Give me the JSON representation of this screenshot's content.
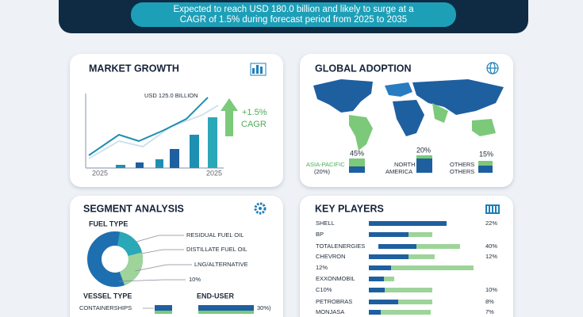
{
  "header": {
    "lines": [
      "Expected to reach USD 180.0 billion and likely to surge at a",
      "CAGR of 1.5% during forecast period from 2025 to 2035"
    ]
  },
  "market_growth": {
    "title": "MARKET GROWTH",
    "annotation": "USD 125.0 BILLION",
    "cagr": [
      "+1.5%",
      "CAGR"
    ],
    "axis_labels": [
      "2025",
      "2025"
    ]
  },
  "global_adoption": {
    "title": "GLOBAL ADOPTION",
    "regions": [
      {
        "value": "45%",
        "label": [
          "ASIA-PACIFIC",
          "(20%)"
        ]
      },
      {
        "value": "20%",
        "label": [
          "NORTH",
          "AMERICA"
        ]
      },
      {
        "value": "15%",
        "label": [
          "OTHERS",
          "OTHERS"
        ]
      }
    ]
  },
  "segment_analysis": {
    "title": "SEGMENT ANALYSIS",
    "fuel_type": {
      "title": "FUEL TYPE",
      "labels": [
        "RESIDUAL FUEL OIL",
        "DISTILLATE FUEL OIL",
        "LNG/ALTERNATIVE",
        "10%"
      ]
    },
    "vessel_type": {
      "title": "VESSEL TYPE",
      "labels": [
        "CONTAINERSHIPS"
      ]
    },
    "end_user": {
      "title": "END-USER",
      "labels": [
        "30%)"
      ]
    }
  },
  "key_players": {
    "title": "KEY PLAYERS",
    "rows": [
      {
        "name": "SHELL",
        "value": "22%"
      },
      {
        "name": "BP"
      },
      {
        "name": "TOTALENERGIES",
        "value": "40%"
      },
      {
        "name": "CHEVRON",
        "value": "12%"
      },
      {
        "name": "12%"
      },
      {
        "name": "EXXONMOBIL"
      },
      {
        "name": "C10%",
        "value": "10%"
      },
      {
        "name": "PETROBRAS",
        "value": "8%"
      },
      {
        "name": "MONJASA",
        "value": "7%"
      }
    ]
  }
}
